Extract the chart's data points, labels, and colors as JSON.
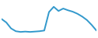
{
  "x": [
    0,
    1,
    2,
    3,
    4,
    5,
    6,
    7,
    8,
    9,
    10,
    11,
    12,
    13,
    14,
    15,
    16,
    17,
    18,
    19,
    20
  ],
  "y": [
    6.5,
    5.5,
    3.8,
    3.0,
    2.8,
    2.9,
    2.8,
    2.9,
    3.0,
    3.2,
    8.5,
    10.0,
    8.8,
    9.5,
    9.0,
    8.6,
    8.0,
    7.2,
    6.2,
    4.8,
    3.2
  ],
  "line_color": "#3399cc",
  "background_color": "#ffffff",
  "linewidth": 1.4,
  "xlim": [
    0,
    20
  ],
  "ylim": [
    1.5,
    11.5
  ]
}
